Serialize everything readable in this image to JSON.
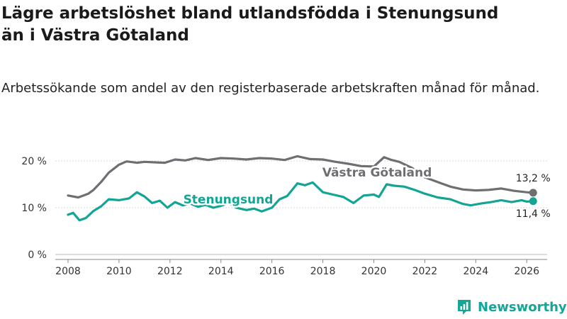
{
  "page": {
    "title_line1": "Lägre arbetslöshet bland utlandsfödda i Stenungsund",
    "title_line2": "än i Västra Götaland",
    "subtitle": "Arbetssökande som andel av den registerbaserade arbetskraften månad för månad.",
    "brand": "Newsworthy"
  },
  "colors": {
    "vg": "#6e6e73",
    "sten": "#12a594",
    "grid": "#d9d9d9",
    "axis": "#888888"
  },
  "chart_data": {
    "type": "line",
    "title": "Lägre arbetslöshet bland utlandsfödda i Stenungsund än i Västra Götaland",
    "subtitle": "Arbetssökande som andel av den registerbaserade arbetskraften månad för månad.",
    "xlabel": "",
    "ylabel": "",
    "xlim": [
      2007.5,
      2026.8
    ],
    "ylim": [
      0,
      20
    ],
    "y_ticks": [
      0,
      10,
      20
    ],
    "y_tick_labels": [
      "0 %",
      "10 %",
      "20 %"
    ],
    "x_ticks": [
      2008,
      2010,
      2012,
      2014,
      2016,
      2018,
      2020,
      2022,
      2024,
      2026
    ],
    "x_tick_labels": [
      "2008",
      "2010",
      "2012",
      "2014",
      "2016",
      "2018",
      "2020",
      "2022",
      "2024",
      "2026"
    ],
    "series": [
      {
        "name": "Västra Götaland",
        "color": "#6e6e73",
        "end_label": "13,2 %",
        "points": [
          [
            2008.0,
            12.6
          ],
          [
            2008.4,
            12.2
          ],
          [
            2008.8,
            13.0
          ],
          [
            2009.0,
            13.8
          ],
          [
            2009.3,
            15.5
          ],
          [
            2009.6,
            17.5
          ],
          [
            2010.0,
            19.2
          ],
          [
            2010.3,
            19.9
          ],
          [
            2010.7,
            19.6
          ],
          [
            2011.0,
            19.8
          ],
          [
            2011.4,
            19.7
          ],
          [
            2011.8,
            19.6
          ],
          [
            2012.2,
            20.3
          ],
          [
            2012.6,
            20.1
          ],
          [
            2013.0,
            20.6
          ],
          [
            2013.5,
            20.2
          ],
          [
            2014.0,
            20.6
          ],
          [
            2014.5,
            20.5
          ],
          [
            2015.0,
            20.3
          ],
          [
            2015.5,
            20.6
          ],
          [
            2016.0,
            20.5
          ],
          [
            2016.5,
            20.2
          ],
          [
            2017.0,
            21.0
          ],
          [
            2017.5,
            20.4
          ],
          [
            2018.0,
            20.3
          ],
          [
            2018.5,
            19.8
          ],
          [
            2019.0,
            19.4
          ],
          [
            2019.5,
            18.9
          ],
          [
            2020.0,
            18.8
          ],
          [
            2020.4,
            20.8
          ],
          [
            2020.7,
            20.2
          ],
          [
            2021.0,
            19.8
          ],
          [
            2021.5,
            18.5
          ],
          [
            2022.0,
            16.5
          ],
          [
            2022.5,
            15.5
          ],
          [
            2023.0,
            14.5
          ],
          [
            2023.5,
            13.9
          ],
          [
            2024.0,
            13.7
          ],
          [
            2024.5,
            13.8
          ],
          [
            2025.0,
            14.1
          ],
          [
            2025.5,
            13.6
          ],
          [
            2026.0,
            13.3
          ],
          [
            2026.25,
            13.2
          ]
        ]
      },
      {
        "name": "Stenungsund",
        "color": "#12a594",
        "end_label": "11,4 %",
        "points": [
          [
            2008.0,
            8.5
          ],
          [
            2008.2,
            8.9
          ],
          [
            2008.45,
            7.3
          ],
          [
            2008.7,
            7.8
          ],
          [
            2009.0,
            9.3
          ],
          [
            2009.3,
            10.3
          ],
          [
            2009.6,
            11.8
          ],
          [
            2010.0,
            11.6
          ],
          [
            2010.4,
            12.0
          ],
          [
            2010.7,
            13.3
          ],
          [
            2011.0,
            12.4
          ],
          [
            2011.3,
            11.0
          ],
          [
            2011.6,
            11.5
          ],
          [
            2011.9,
            10.0
          ],
          [
            2012.2,
            11.2
          ],
          [
            2012.5,
            10.5
          ],
          [
            2012.8,
            10.9
          ],
          [
            2013.1,
            10.2
          ],
          [
            2013.4,
            10.6
          ],
          [
            2013.7,
            10.0
          ],
          [
            2014.0,
            10.4
          ],
          [
            2014.3,
            11.0
          ],
          [
            2014.6,
            10.0
          ],
          [
            2015.0,
            9.5
          ],
          [
            2015.3,
            9.8
          ],
          [
            2015.6,
            9.2
          ],
          [
            2016.0,
            10.0
          ],
          [
            2016.3,
            11.8
          ],
          [
            2016.6,
            12.5
          ],
          [
            2017.0,
            15.2
          ],
          [
            2017.3,
            14.8
          ],
          [
            2017.6,
            15.4
          ],
          [
            2018.0,
            13.3
          ],
          [
            2018.4,
            12.8
          ],
          [
            2018.8,
            12.3
          ],
          [
            2019.2,
            11.0
          ],
          [
            2019.6,
            12.6
          ],
          [
            2020.0,
            12.8
          ],
          [
            2020.2,
            12.3
          ],
          [
            2020.5,
            15.0
          ],
          [
            2020.8,
            14.7
          ],
          [
            2021.2,
            14.5
          ],
          [
            2021.6,
            13.8
          ],
          [
            2022.0,
            13.0
          ],
          [
            2022.5,
            12.2
          ],
          [
            2023.0,
            11.8
          ],
          [
            2023.5,
            10.8
          ],
          [
            2023.8,
            10.5
          ],
          [
            2024.2,
            10.9
          ],
          [
            2024.6,
            11.2
          ],
          [
            2025.0,
            11.6
          ],
          [
            2025.4,
            11.2
          ],
          [
            2025.8,
            11.6
          ],
          [
            2026.0,
            11.3
          ],
          [
            2026.25,
            11.4
          ]
        ]
      }
    ],
    "annotations": [
      "Västra Götaland",
      "Stenungsund"
    ]
  }
}
